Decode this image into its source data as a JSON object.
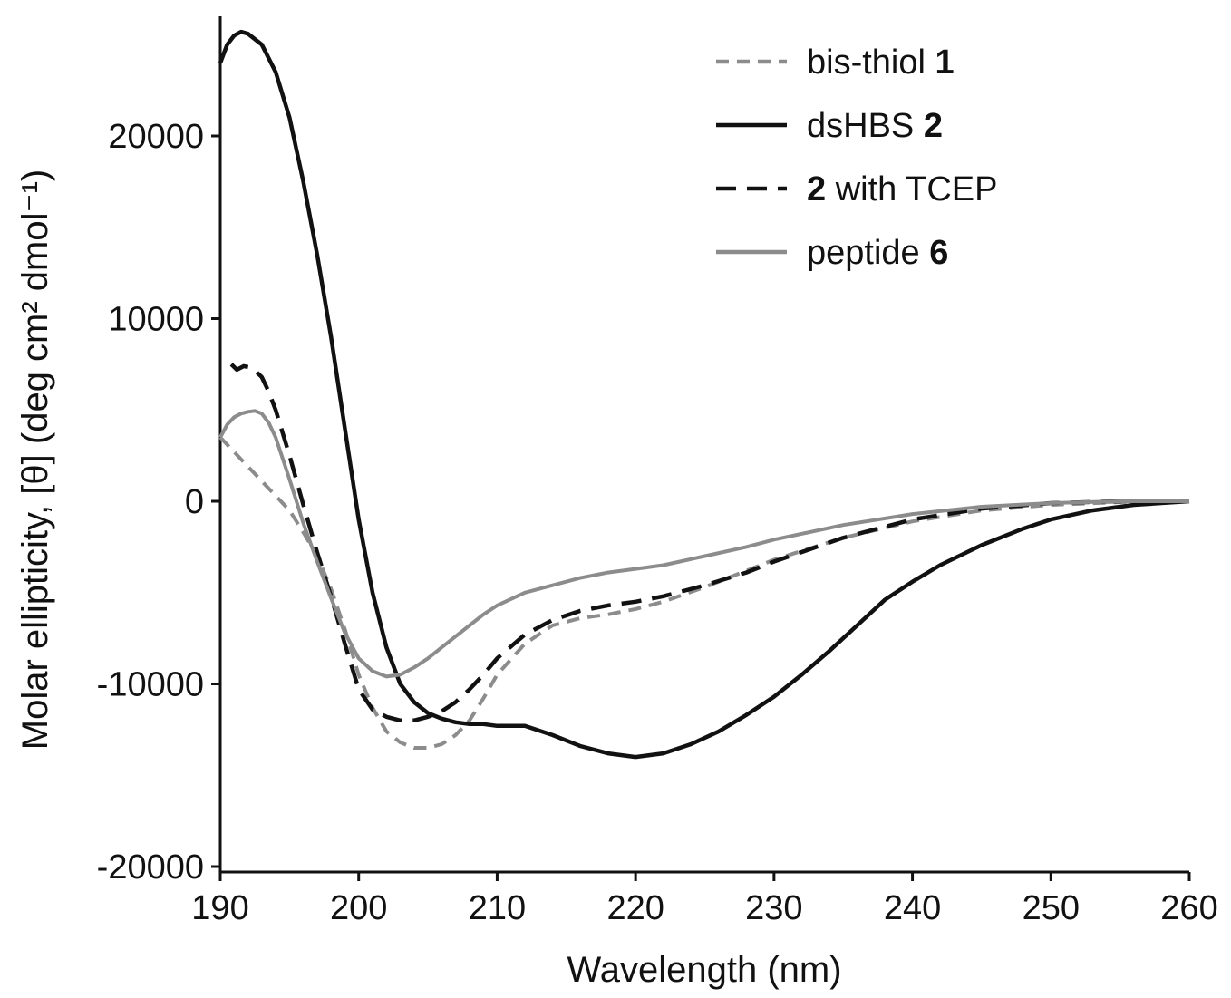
{
  "chart_data": {
    "type": "line",
    "xlabel": "Wavelength (nm)",
    "ylabel": "Molar ellipticity, [θ] (deg cm² dmol⁻¹)",
    "xlim": [
      190,
      260
    ],
    "ylim": [
      -20000,
      27000
    ],
    "xticks": [
      190,
      200,
      210,
      220,
      230,
      240,
      250,
      260
    ],
    "yticks": [
      -20000,
      -10000,
      0,
      10000,
      20000
    ],
    "xtick_labels": [
      "190",
      "200",
      "210",
      "220",
      "230",
      "240",
      "250",
      "260"
    ],
    "ytick_labels": [
      "-20000",
      "-10000",
      "0",
      "10000",
      "20000"
    ],
    "grid": false,
    "legend_position": "top-right",
    "series": [
      {
        "name": "bis-thiol",
        "name_bold": "1",
        "color": "#8c8c8c",
        "style": "dashed",
        "x": [
          190,
          191,
          192,
          193,
          194,
          195,
          196,
          197,
          198,
          199,
          200,
          201,
          202,
          203,
          204,
          205,
          206,
          207,
          208,
          209,
          210,
          212,
          214,
          216,
          218,
          220,
          222,
          225,
          228,
          230,
          235,
          240,
          245,
          250,
          255,
          260
        ],
        "y": [
          3500,
          2700,
          1900,
          1100,
          300,
          -500,
          -1700,
          -3000,
          -4800,
          -7000,
          -9500,
          -11300,
          -12600,
          -13200,
          -13500,
          -13500,
          -13300,
          -12800,
          -12000,
          -10800,
          -9500,
          -7800,
          -6800,
          -6400,
          -6200,
          -5900,
          -5500,
          -4700,
          -3800,
          -3200,
          -2000,
          -1100,
          -500,
          -200,
          -50,
          0
        ]
      },
      {
        "name": "dsHBS",
        "name_bold": "2",
        "color": "#111111",
        "style": "solid",
        "x": [
          190,
          190.5,
          191,
          191.5,
          192,
          193,
          194,
          195,
          196,
          197,
          198,
          199,
          200,
          201,
          202,
          203,
          204,
          205,
          206,
          207,
          208,
          209,
          210,
          211,
          212,
          214,
          216,
          218,
          220,
          222,
          224,
          226,
          228,
          230,
          232,
          234,
          236,
          238,
          240,
          242,
          245,
          248,
          250,
          253,
          256,
          260
        ],
        "y": [
          24000,
          25000,
          25500,
          25700,
          25600,
          25000,
          23500,
          21000,
          17500,
          13500,
          9000,
          4000,
          -1000,
          -5000,
          -8000,
          -10000,
          -11000,
          -11600,
          -11900,
          -12100,
          -12200,
          -12200,
          -12300,
          -12300,
          -12300,
          -12800,
          -13400,
          -13800,
          -14000,
          -13800,
          -13300,
          -12600,
          -11700,
          -10700,
          -9500,
          -8200,
          -6800,
          -5400,
          -4400,
          -3500,
          -2400,
          -1500,
          -1000,
          -500,
          -200,
          0
        ]
      },
      {
        "name": "with TCEP",
        "name_bold": "2",
        "color": "#111111",
        "style": "longdash",
        "x": [
          190.8,
          191.2,
          191.7,
          192.3,
          193,
          193.5,
          194,
          195,
          196,
          197,
          198,
          199,
          200,
          201,
          202,
          203,
          204,
          205,
          206,
          207,
          208,
          209,
          210,
          212,
          214,
          216,
          218,
          220,
          222,
          225,
          228,
          230,
          235,
          240,
          245,
          250,
          255,
          260
        ],
        "y": [
          7500,
          7200,
          7400,
          7300,
          6800,
          6000,
          5000,
          2500,
          -200,
          -2800,
          -5200,
          -7800,
          -10300,
          -11400,
          -11800,
          -12000,
          -12000,
          -11800,
          -11500,
          -11000,
          -10300,
          -9500,
          -8600,
          -7300,
          -6500,
          -6000,
          -5700,
          -5500,
          -5200,
          -4600,
          -3900,
          -3300,
          -2000,
          -1000,
          -400,
          -100,
          0,
          0
        ]
      },
      {
        "name": "peptide",
        "name_bold": "6",
        "color": "#8c8c8c",
        "style": "solid",
        "x": [
          190,
          190.5,
          191,
          191.5,
          192,
          192.5,
          193,
          193.5,
          194,
          195,
          196,
          197,
          198,
          199,
          200,
          201,
          202,
          203,
          204,
          205,
          206,
          207,
          208,
          209,
          210,
          212,
          214,
          216,
          218,
          220,
          222,
          225,
          228,
          230,
          235,
          240,
          245,
          250,
          255,
          260
        ],
        "y": [
          3500,
          4200,
          4600,
          4800,
          4900,
          4950,
          4800,
          4300,
          3500,
          1200,
          -1200,
          -3300,
          -5300,
          -7200,
          -8600,
          -9300,
          -9600,
          -9500,
          -9100,
          -8600,
          -8000,
          -7400,
          -6800,
          -6200,
          -5700,
          -5000,
          -4600,
          -4200,
          -3900,
          -3700,
          -3500,
          -3000,
          -2500,
          -2100,
          -1300,
          -700,
          -300,
          -100,
          0,
          0
        ]
      }
    ]
  }
}
